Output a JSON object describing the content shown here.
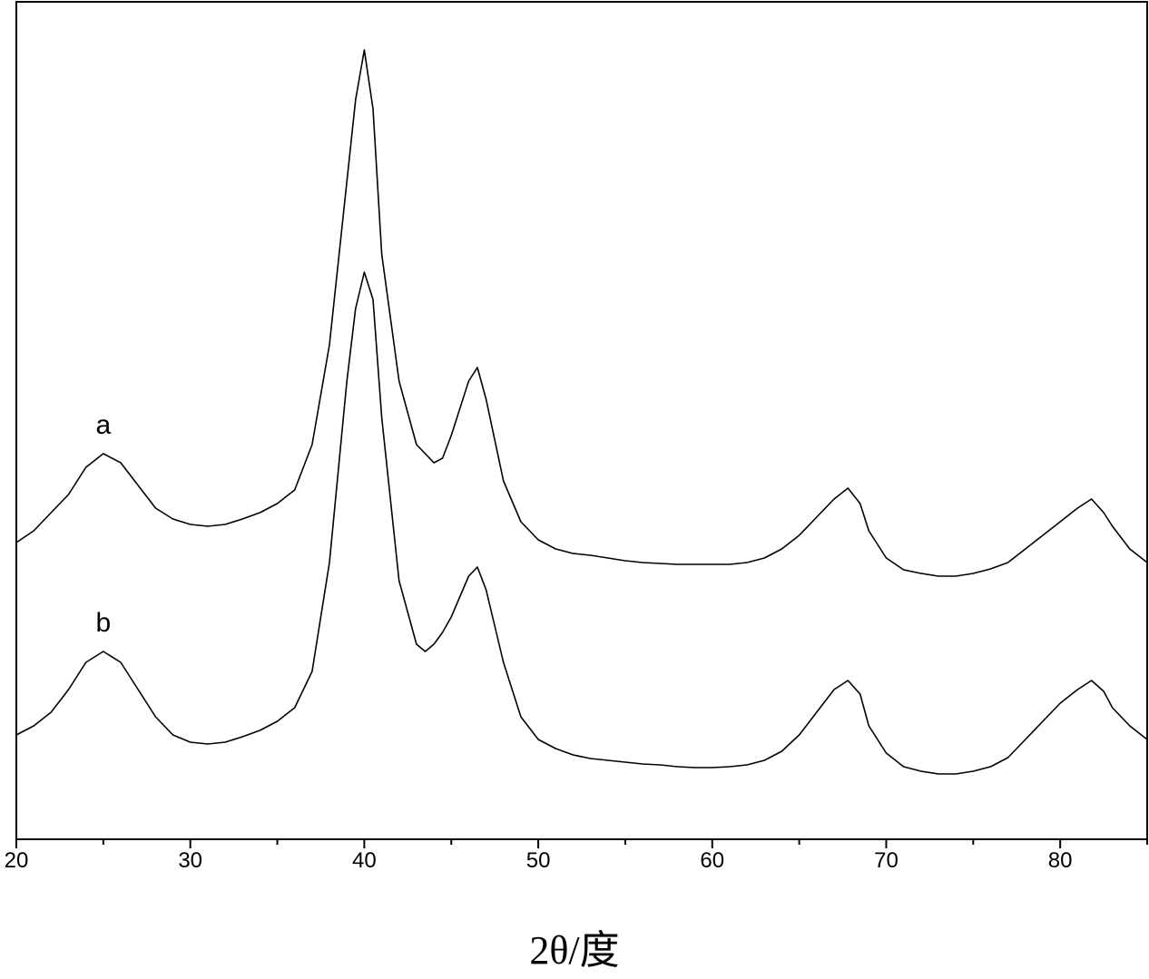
{
  "chart_data": {
    "type": "line",
    "x_label": "2θ/度",
    "xlim": [
      20,
      85
    ],
    "xticks": [
      20,
      30,
      40,
      50,
      60,
      70,
      80
    ],
    "xminor_ticks": [
      25,
      35,
      45,
      55,
      65,
      75,
      85
    ],
    "ylim": [
      0,
      923
    ],
    "x": [
      20,
      21,
      22,
      23,
      24,
      25,
      26,
      27,
      28,
      29,
      30,
      31,
      32,
      33,
      34,
      35,
      36,
      37,
      38,
      38.5,
      39,
      39.5,
      40,
      40.5,
      41,
      42,
      43,
      43.5,
      44,
      44.5,
      45,
      46,
      46.5,
      47,
      48,
      49,
      50,
      51,
      52,
      53,
      54,
      55,
      56,
      57,
      58,
      59,
      60,
      61,
      62,
      63,
      64,
      65,
      66,
      67,
      67.8,
      68.5,
      69,
      70,
      71,
      72,
      73,
      74,
      75,
      76,
      77,
      78,
      79,
      80,
      81,
      81.8,
      82.5,
      83,
      84,
      85
    ],
    "series": [
      {
        "name": "a",
        "color": "#000000",
        "values": [
          327,
          340,
          360,
          380,
          410,
          425,
          415,
          390,
          365,
          353,
          347,
          345,
          347,
          353,
          360,
          370,
          385,
          435,
          545,
          635,
          725,
          815,
          870,
          805,
          645,
          505,
          435,
          425,
          415,
          420,
          445,
          505,
          520,
          485,
          395,
          350,
          330,
          320,
          315,
          313,
          310,
          307,
          305,
          304,
          303,
          303,
          303,
          303,
          305,
          310,
          320,
          335,
          355,
          375,
          387,
          370,
          340,
          310,
          297,
          293,
          290,
          290,
          293,
          298,
          305,
          320,
          335,
          350,
          365,
          375,
          360,
          345,
          320,
          305
        ]
      },
      {
        "name": "b",
        "color": "#000000",
        "values": [
          115,
          125,
          140,
          165,
          195,
          207,
          195,
          165,
          135,
          115,
          107,
          105,
          107,
          113,
          120,
          130,
          145,
          185,
          305,
          405,
          505,
          585,
          625,
          595,
          465,
          285,
          215,
          207,
          215,
          228,
          245,
          290,
          300,
          275,
          195,
          135,
          110,
          100,
          93,
          89,
          87,
          85,
          83,
          82,
          80,
          79,
          79,
          80,
          82,
          87,
          97,
          115,
          140,
          165,
          175,
          160,
          125,
          95,
          80,
          75,
          72,
          72,
          75,
          80,
          90,
          110,
          130,
          150,
          165,
          175,
          163,
          145,
          125,
          110
        ]
      }
    ]
  }
}
